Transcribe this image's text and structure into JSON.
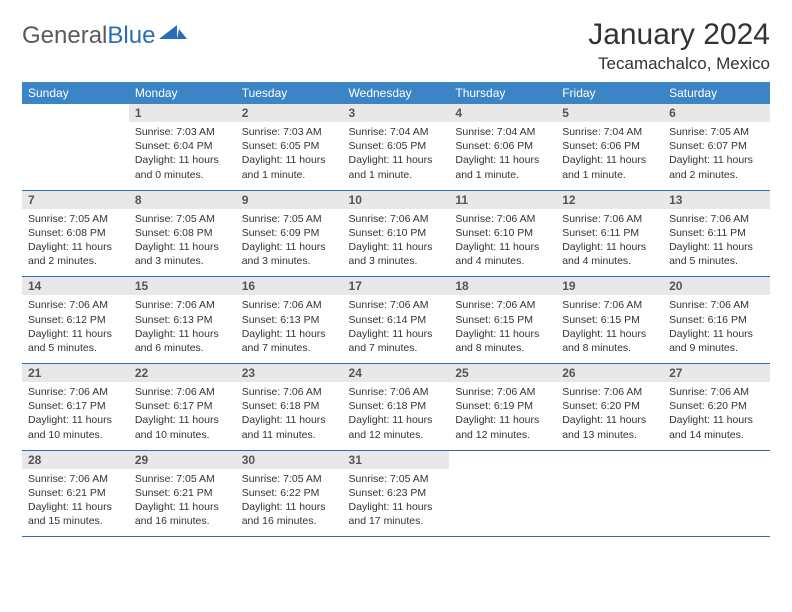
{
  "logo": {
    "part1": "General",
    "part2": "Blue"
  },
  "title": "January 2024",
  "location": "Tecamachalco, Mexico",
  "colors": {
    "header_bg": "#3b85c6",
    "border": "#2a6db8",
    "daynum_bg": "#e8e8e8",
    "text": "#333333"
  },
  "weekdays": [
    "Sunday",
    "Monday",
    "Tuesday",
    "Wednesday",
    "Thursday",
    "Friday",
    "Saturday"
  ],
  "first_weekday_index": 1,
  "days": [
    {
      "n": 1,
      "sr": "7:03 AM",
      "ss": "6:04 PM",
      "dl": "11 hours and 0 minutes."
    },
    {
      "n": 2,
      "sr": "7:03 AM",
      "ss": "6:05 PM",
      "dl": "11 hours and 1 minute."
    },
    {
      "n": 3,
      "sr": "7:04 AM",
      "ss": "6:05 PM",
      "dl": "11 hours and 1 minute."
    },
    {
      "n": 4,
      "sr": "7:04 AM",
      "ss": "6:06 PM",
      "dl": "11 hours and 1 minute."
    },
    {
      "n": 5,
      "sr": "7:04 AM",
      "ss": "6:06 PM",
      "dl": "11 hours and 1 minute."
    },
    {
      "n": 6,
      "sr": "7:05 AM",
      "ss": "6:07 PM",
      "dl": "11 hours and 2 minutes."
    },
    {
      "n": 7,
      "sr": "7:05 AM",
      "ss": "6:08 PM",
      "dl": "11 hours and 2 minutes."
    },
    {
      "n": 8,
      "sr": "7:05 AM",
      "ss": "6:08 PM",
      "dl": "11 hours and 3 minutes."
    },
    {
      "n": 9,
      "sr": "7:05 AM",
      "ss": "6:09 PM",
      "dl": "11 hours and 3 minutes."
    },
    {
      "n": 10,
      "sr": "7:06 AM",
      "ss": "6:10 PM",
      "dl": "11 hours and 3 minutes."
    },
    {
      "n": 11,
      "sr": "7:06 AM",
      "ss": "6:10 PM",
      "dl": "11 hours and 4 minutes."
    },
    {
      "n": 12,
      "sr": "7:06 AM",
      "ss": "6:11 PM",
      "dl": "11 hours and 4 minutes."
    },
    {
      "n": 13,
      "sr": "7:06 AM",
      "ss": "6:11 PM",
      "dl": "11 hours and 5 minutes."
    },
    {
      "n": 14,
      "sr": "7:06 AM",
      "ss": "6:12 PM",
      "dl": "11 hours and 5 minutes."
    },
    {
      "n": 15,
      "sr": "7:06 AM",
      "ss": "6:13 PM",
      "dl": "11 hours and 6 minutes."
    },
    {
      "n": 16,
      "sr": "7:06 AM",
      "ss": "6:13 PM",
      "dl": "11 hours and 7 minutes."
    },
    {
      "n": 17,
      "sr": "7:06 AM",
      "ss": "6:14 PM",
      "dl": "11 hours and 7 minutes."
    },
    {
      "n": 18,
      "sr": "7:06 AM",
      "ss": "6:15 PM",
      "dl": "11 hours and 8 minutes."
    },
    {
      "n": 19,
      "sr": "7:06 AM",
      "ss": "6:15 PM",
      "dl": "11 hours and 8 minutes."
    },
    {
      "n": 20,
      "sr": "7:06 AM",
      "ss": "6:16 PM",
      "dl": "11 hours and 9 minutes."
    },
    {
      "n": 21,
      "sr": "7:06 AM",
      "ss": "6:17 PM",
      "dl": "11 hours and 10 minutes."
    },
    {
      "n": 22,
      "sr": "7:06 AM",
      "ss": "6:17 PM",
      "dl": "11 hours and 10 minutes."
    },
    {
      "n": 23,
      "sr": "7:06 AM",
      "ss": "6:18 PM",
      "dl": "11 hours and 11 minutes."
    },
    {
      "n": 24,
      "sr": "7:06 AM",
      "ss": "6:18 PM",
      "dl": "11 hours and 12 minutes."
    },
    {
      "n": 25,
      "sr": "7:06 AM",
      "ss": "6:19 PM",
      "dl": "11 hours and 12 minutes."
    },
    {
      "n": 26,
      "sr": "7:06 AM",
      "ss": "6:20 PM",
      "dl": "11 hours and 13 minutes."
    },
    {
      "n": 27,
      "sr": "7:06 AM",
      "ss": "6:20 PM",
      "dl": "11 hours and 14 minutes."
    },
    {
      "n": 28,
      "sr": "7:06 AM",
      "ss": "6:21 PM",
      "dl": "11 hours and 15 minutes."
    },
    {
      "n": 29,
      "sr": "7:05 AM",
      "ss": "6:21 PM",
      "dl": "11 hours and 16 minutes."
    },
    {
      "n": 30,
      "sr": "7:05 AM",
      "ss": "6:22 PM",
      "dl": "11 hours and 16 minutes."
    },
    {
      "n": 31,
      "sr": "7:05 AM",
      "ss": "6:23 PM",
      "dl": "11 hours and 17 minutes."
    }
  ],
  "labels": {
    "sunrise": "Sunrise:",
    "sunset": "Sunset:",
    "daylight": "Daylight:"
  }
}
